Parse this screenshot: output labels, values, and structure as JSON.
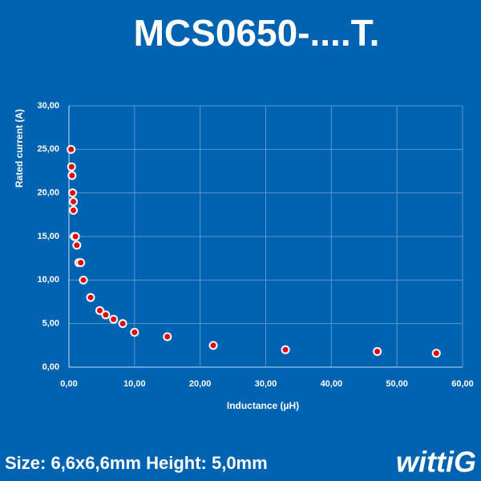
{
  "chart_data": {
    "type": "scatter",
    "title": "MCS0650-....T.",
    "x_label": "Inductance (µH)",
    "y_label": "Rated current (A)",
    "footer": "Size: 6,6x6,6mm Height: 5,0mm",
    "logo": "wittiG",
    "x": [
      0.33,
      0.4,
      0.47,
      0.56,
      0.68,
      0.68,
      0.82,
      1.0,
      1.2,
      1.5,
      1.8,
      2.2,
      3.3,
      4.7,
      5.6,
      6.8,
      8.2,
      10,
      15,
      22,
      33,
      47,
      56
    ],
    "series": [
      {
        "color": "#e30613",
        "values": [
          25,
          23,
          22,
          20,
          19,
          18,
          15,
          15,
          14,
          12,
          12,
          10,
          8,
          6.5,
          6,
          5.5,
          5,
          4,
          3.5,
          2.5,
          2,
          1.8,
          1.6
        ]
      }
    ],
    "xlim": [
      0,
      60
    ],
    "ylim": [
      0,
      30
    ],
    "xticks": [
      {
        "value": 0,
        "label": "0,00"
      },
      {
        "value": 10,
        "label": "10,00"
      },
      {
        "value": 20,
        "label": "20,00"
      },
      {
        "value": 30,
        "label": "30,00"
      },
      {
        "value": 40,
        "label": "40,00"
      },
      {
        "value": 50,
        "label": "50,00"
      },
      {
        "value": 60,
        "label": "60,00"
      }
    ],
    "yticks": [
      {
        "value": 0,
        "label": "0,00"
      },
      {
        "value": 5,
        "label": "5,00"
      },
      {
        "value": 10,
        "label": "10,00"
      },
      {
        "value": 15,
        "label": "15,00"
      },
      {
        "value": 20,
        "label": "20,00"
      },
      {
        "value": 25,
        "label": "25,00"
      },
      {
        "value": 30,
        "label": "30,00"
      }
    ],
    "grid": true
  }
}
